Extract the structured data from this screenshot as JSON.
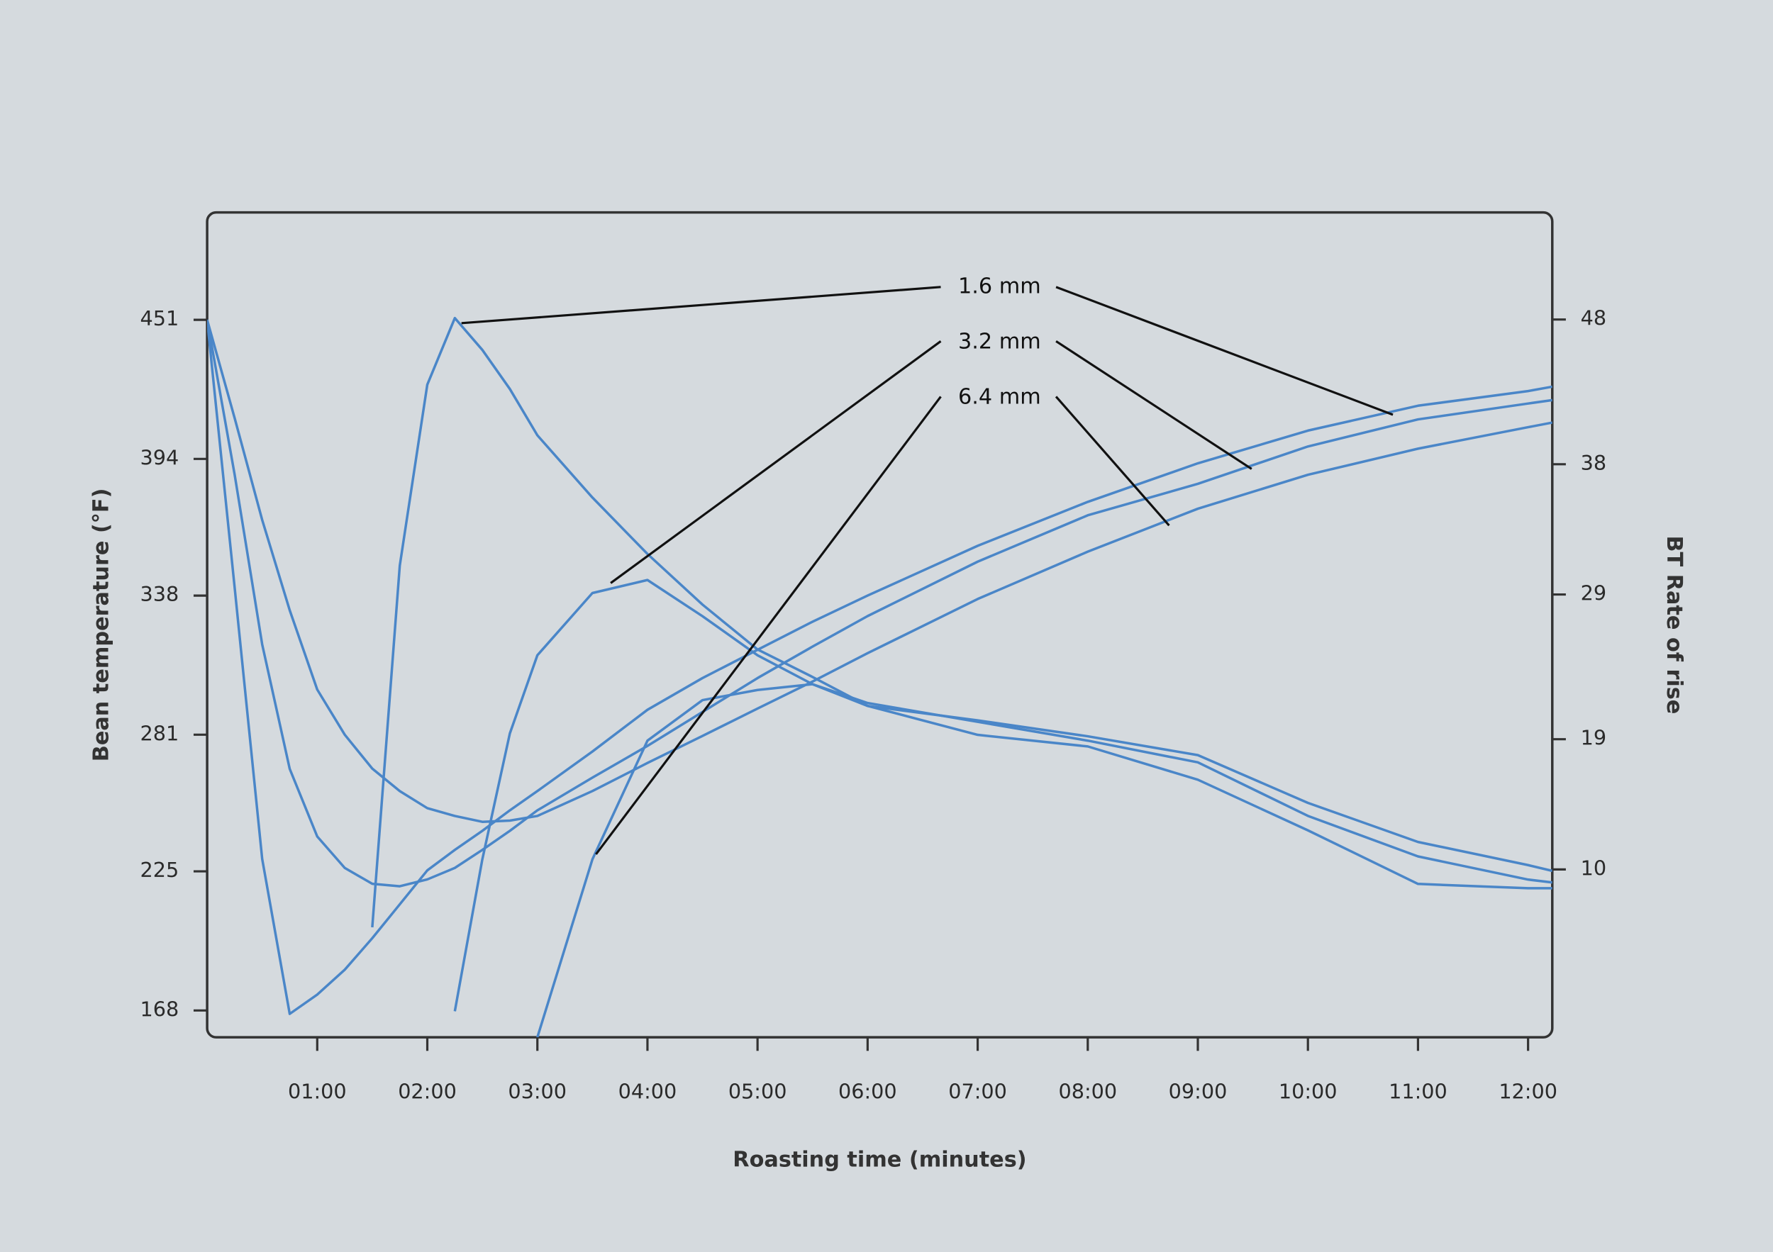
{
  "chart_data": {
    "type": "line",
    "xlabel": "Roasting time (minutes)",
    "ylabel": "Bean temperature (°F)",
    "y2label": "BT Rate of rise",
    "x": [
      0,
      0.25,
      0.5,
      0.75,
      1,
      1.25,
      1.5,
      1.75,
      2,
      2.25,
      2.5,
      2.75,
      3,
      3.5,
      4,
      4.5,
      5,
      5.5,
      6,
      7,
      8,
      9,
      10,
      11,
      12,
      12.22
    ],
    "xlim": [
      0,
      12.22
    ],
    "xticks": [
      {
        "value": 1,
        "label": "01:00"
      },
      {
        "value": 2,
        "label": "02:00"
      },
      {
        "value": 3,
        "label": "03:00"
      },
      {
        "value": 4,
        "label": "04:00"
      },
      {
        "value": 5,
        "label": "05:00"
      },
      {
        "value": 6,
        "label": "06:00"
      },
      {
        "value": 7,
        "label": "07:00"
      },
      {
        "value": 8,
        "label": "08:00"
      },
      {
        "value": 9,
        "label": "09:00"
      },
      {
        "value": 10,
        "label": "10:00"
      },
      {
        "value": 11,
        "label": "11:00"
      },
      {
        "value": 12,
        "label": "12:00"
      }
    ],
    "ylim": [
      157,
      495
    ],
    "yticks": [
      168,
      225,
      281,
      338,
      394,
      451
    ],
    "y2lim": [
      -1.6,
      55.4
    ],
    "y2ticks": [
      10,
      19,
      29,
      38,
      48
    ],
    "series": [
      {
        "color": "#4a86c8",
        "values": [
          451,
          341.2,
          230.1,
          166.6,
          174.5,
          184.7,
          197.6,
          211.5,
          225.4,
          233.8,
          241.6,
          250,
          257.9,
          274.1,
          291.2,
          304.2,
          315.8,
          327.3,
          338,
          358.4,
          376.4,
          392.2,
          405.6,
          415.8,
          421.8,
          423.6
        ]
      },
      {
        "color": "#4a86c8",
        "values": [
          451,
          387.5,
          318,
          267,
          239.3,
          226.4,
          219.9,
          218.9,
          221.7,
          226.4,
          233.8,
          241.6,
          250,
          263.4,
          276.4,
          290.3,
          304.2,
          317.1,
          329.6,
          351.9,
          370.9,
          383.8,
          399.1,
          410.2,
          416.7,
          418.1
        ]
      },
      {
        "color": "#4a86c8",
        "values": [
          451,
          410.7,
          369,
          332,
          299.5,
          281,
          267.1,
          257.9,
          250.9,
          247.7,
          245.3,
          245.8,
          247.7,
          257.9,
          269.4,
          280.5,
          291.7,
          302.8,
          314.4,
          336.6,
          356,
          373.6,
          387.5,
          398.2,
          407,
          408.9
        ]
      },
      {
        "color": "#4a86c8",
        "axis": "y2",
        "values": [
          null,
          null,
          null,
          null,
          null,
          null,
          6.0,
          31.0,
          43.5,
          48.1,
          45.9,
          43.2,
          40.0,
          35.7,
          31.8,
          28.3,
          25.2,
          23.3,
          21.3,
          20.3,
          19.2,
          17.9,
          14.6,
          11.9,
          10.3,
          9.9
        ]
      },
      {
        "color": "#4a86c8",
        "axis": "y2",
        "values": [
          null,
          null,
          null,
          null,
          null,
          null,
          null,
          null,
          null,
          0.2,
          10.7,
          19.4,
          24.8,
          29.1,
          30.0,
          27.5,
          24.8,
          22.8,
          21.5,
          20.2,
          18.9,
          17.4,
          13.7,
          10.9,
          9.3,
          9.1
        ]
      },
      {
        "color": "#4a86c8",
        "axis": "y2",
        "values": [
          null,
          null,
          null,
          null,
          null,
          null,
          null,
          null,
          null,
          null,
          null,
          null,
          -1.6,
          10.7,
          18.9,
          21.7,
          22.4,
          22.8,
          21.3,
          19.3,
          18.5,
          16.2,
          12.7,
          9.0,
          8.7,
          8.7
        ]
      }
    ],
    "annotations": [
      {
        "text": "1.6 mm"
      },
      {
        "text": "3.2 mm"
      },
      {
        "text": "6.4 mm"
      }
    ]
  }
}
